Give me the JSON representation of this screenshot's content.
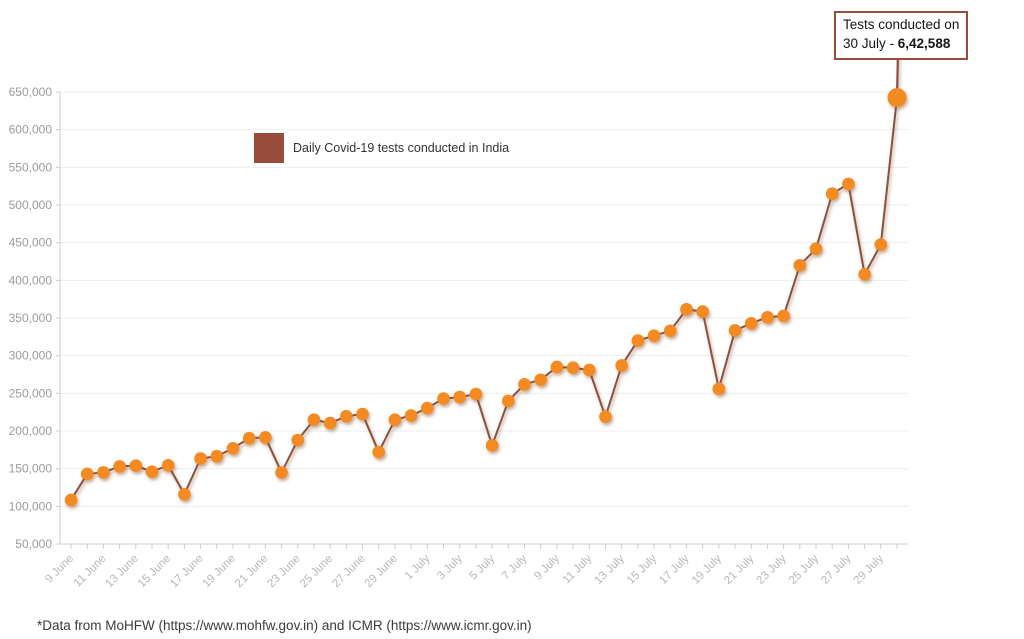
{
  "page": {
    "background": "#ffffff"
  },
  "legend": {
    "label": "Daily Covid-19 tests conducted in India",
    "swatch_color": "#9A4C3C"
  },
  "annotation": {
    "line1": "Tests conducted on",
    "line2_prefix": "30 July - ",
    "value": "6,42,588",
    "border_color": "#9A4C3C"
  },
  "footnote": "*Data from MoHFW (https://www.mohfw.gov.in) and ICMR (https://www.icmr.gov.in)",
  "chart_data": {
    "type": "line",
    "title": "",
    "xlabel": "",
    "ylabel": "",
    "x": [
      "9 June",
      "10 June",
      "11 June",
      "12 June",
      "13 June",
      "14 June",
      "15 June",
      "16 June",
      "17 June",
      "18 June",
      "19 June",
      "20 June",
      "21 June",
      "22 June",
      "23 June",
      "24 June",
      "25 June",
      "26 June",
      "27 June",
      "28 June",
      "29 June",
      "30 June",
      "1 July",
      "2 July",
      "3 July",
      "4 July",
      "5 July",
      "6 July",
      "7 July",
      "8 July",
      "9 July",
      "10 July",
      "11 July",
      "12 July",
      "13 July",
      "14 July",
      "15 July",
      "16 July",
      "17 July",
      "18 July",
      "19 July",
      "20 July",
      "21 July",
      "22 July",
      "23 July",
      "24 July",
      "25 July",
      "26 July",
      "27 July",
      "28 July",
      "29 July",
      "30 July"
    ],
    "values": [
      108500,
      143000,
      145000,
      153000,
      154000,
      146000,
      154500,
      116000,
      163500,
      166500,
      177000,
      190500,
      191500,
      145000,
      188000,
      215000,
      210500,
      219500,
      222500,
      172000,
      215000,
      220500,
      230500,
      243000,
      245000,
      249000,
      181000,
      240000,
      262000,
      268000,
      285000,
      284000,
      281000,
      219000,
      287000,
      320000,
      326500,
      333000,
      361500,
      358500,
      256000,
      333500,
      343000,
      351000,
      352800,
      420000,
      442000,
      515000,
      528000,
      408000,
      447500,
      642588
    ],
    "highlight_index": 51,
    "x_tick_every": 2,
    "x_tick_labels": [
      "9 June",
      "11 June",
      "13 June",
      "15 June",
      "17 June",
      "19 June",
      "21 June",
      "23 June",
      "25 June",
      "27 June",
      "29 June",
      "1 July",
      "3 July",
      "5 July",
      "7 July",
      "9 July",
      "11 July",
      "13 July",
      "15 July",
      "17 July",
      "19 July",
      "21 July",
      "23 July",
      "25 July",
      "27 July",
      "29 July"
    ],
    "y_ticks": [
      50000,
      100000,
      150000,
      200000,
      250000,
      300000,
      350000,
      400000,
      450000,
      500000,
      550000,
      600000,
      650000
    ],
    "y_tick_labels": [
      "50,000",
      "100,000",
      "150,000",
      "200,000",
      "250,000",
      "300,000",
      "350,000",
      "400,000",
      "450,000",
      "500,000",
      "550,000",
      "600,000",
      "650,000"
    ],
    "ylim": [
      50000,
      650000
    ],
    "grid": "horizontal",
    "legend_position": "top-left-inside",
    "colors": {
      "line": "#8A5143",
      "point": "#F38A20",
      "legend_swatch": "#9A4C3C",
      "annotation_border": "#9A4C3C",
      "grid": "#ededed",
      "axis": "#cccccc",
      "y_label": "#9b9b9b",
      "x_label": "#b7b7b7"
    }
  }
}
